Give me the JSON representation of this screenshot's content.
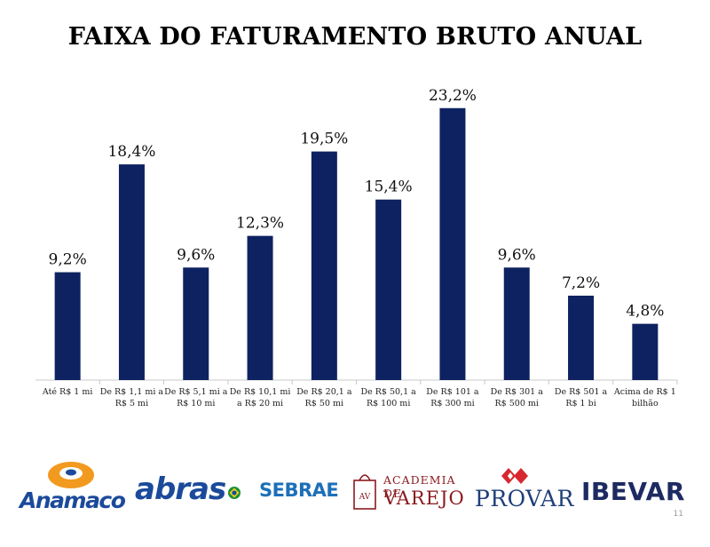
{
  "title": "FAIXA DO FATURAMENTO BRUTO ANUAL",
  "chart_data": {
    "type": "bar",
    "categories": [
      [
        "Até R$ 1 mi"
      ],
      [
        "De R$ 1,1 mi a",
        "R$ 5 mi"
      ],
      [
        "De R$ 5,1 mi a",
        "R$ 10 mi"
      ],
      [
        "De R$ 10,1 mi",
        "a R$ 20 mi"
      ],
      [
        "De R$ 20,1 a",
        "R$ 50 mi"
      ],
      [
        "De R$ 50,1 a",
        "R$ 100 mi"
      ],
      [
        "De R$ 101 a",
        "R$ 300 mi"
      ],
      [
        "De R$ 301 a",
        "R$ 500 mi"
      ],
      [
        "De R$ 501 a",
        "R$ 1 bi"
      ],
      [
        "Acima de R$ 1",
        "bilhão"
      ]
    ],
    "values": [
      9.2,
      18.4,
      9.6,
      12.3,
      19.5,
      15.4,
      23.2,
      9.6,
      7.2,
      4.8
    ],
    "value_labels": [
      "9,2%",
      "18,4%",
      "9,6%",
      "12,3%",
      "19,5%",
      "15,4%",
      "23,2%",
      "9,6%",
      "7,2%",
      "4,8%"
    ],
    "bar_color": "#0e2261",
    "axis_color": "#c8c8c8",
    "ylim": [
      0,
      25
    ],
    "grid": false,
    "legend": "none"
  },
  "logos": {
    "anamaco": "Anamaco",
    "abras": "abras",
    "sebrae": "SEBRAE",
    "academia_top": "ACADEMIA DE",
    "academia_bottom": "VAREJO",
    "academia_badge": "AV",
    "provar": "PROVAR",
    "ibevar": "IBEVAR"
  },
  "page_number": "11"
}
